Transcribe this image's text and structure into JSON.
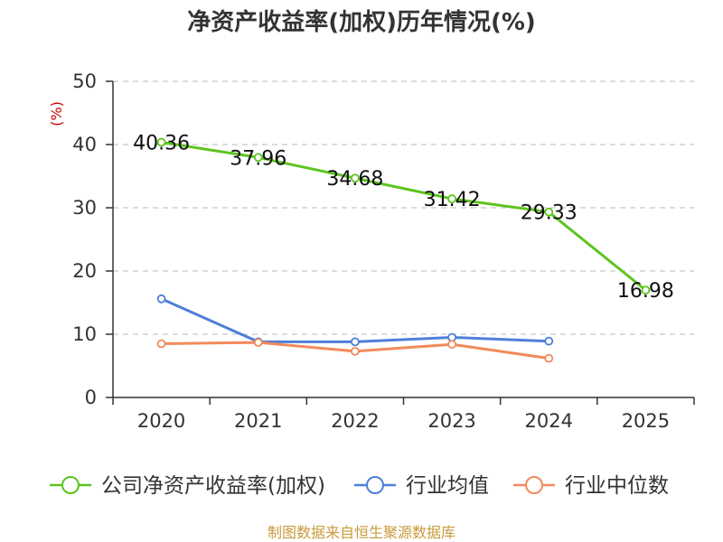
{
  "chart_data": {
    "type": "line",
    "title": "净资产收益率(加权)历年情况(%)",
    "ylabel": "(%)",
    "xlabel": "",
    "categories": [
      "2020",
      "2021",
      "2022",
      "2023",
      "2024",
      "2025"
    ],
    "ylim": [
      0,
      50
    ],
    "yticks": [
      "0",
      "10",
      "20",
      "30",
      "40",
      "50"
    ],
    "grid": true,
    "legend_position": "bottom",
    "series": [
      {
        "name": "公司净资产收益率(加权)",
        "color": "#5ec41e",
        "values": [
          40.36,
          37.96,
          34.68,
          31.42,
          29.33,
          16.98
        ],
        "labels": [
          "40.36",
          "37.96",
          "34.68",
          "31.42",
          "29.33",
          "16.98"
        ]
      },
      {
        "name": "行业均值",
        "color": "#4e7fd8",
        "values": [
          15.6,
          8.8,
          8.8,
          9.5,
          8.9,
          null
        ]
      },
      {
        "name": "行业中位数",
        "color": "#f28a5a",
        "values": [
          8.5,
          8.7,
          7.3,
          8.4,
          6.2,
          null
        ]
      }
    ]
  },
  "source": "制图数据来自恒生聚源数据库"
}
